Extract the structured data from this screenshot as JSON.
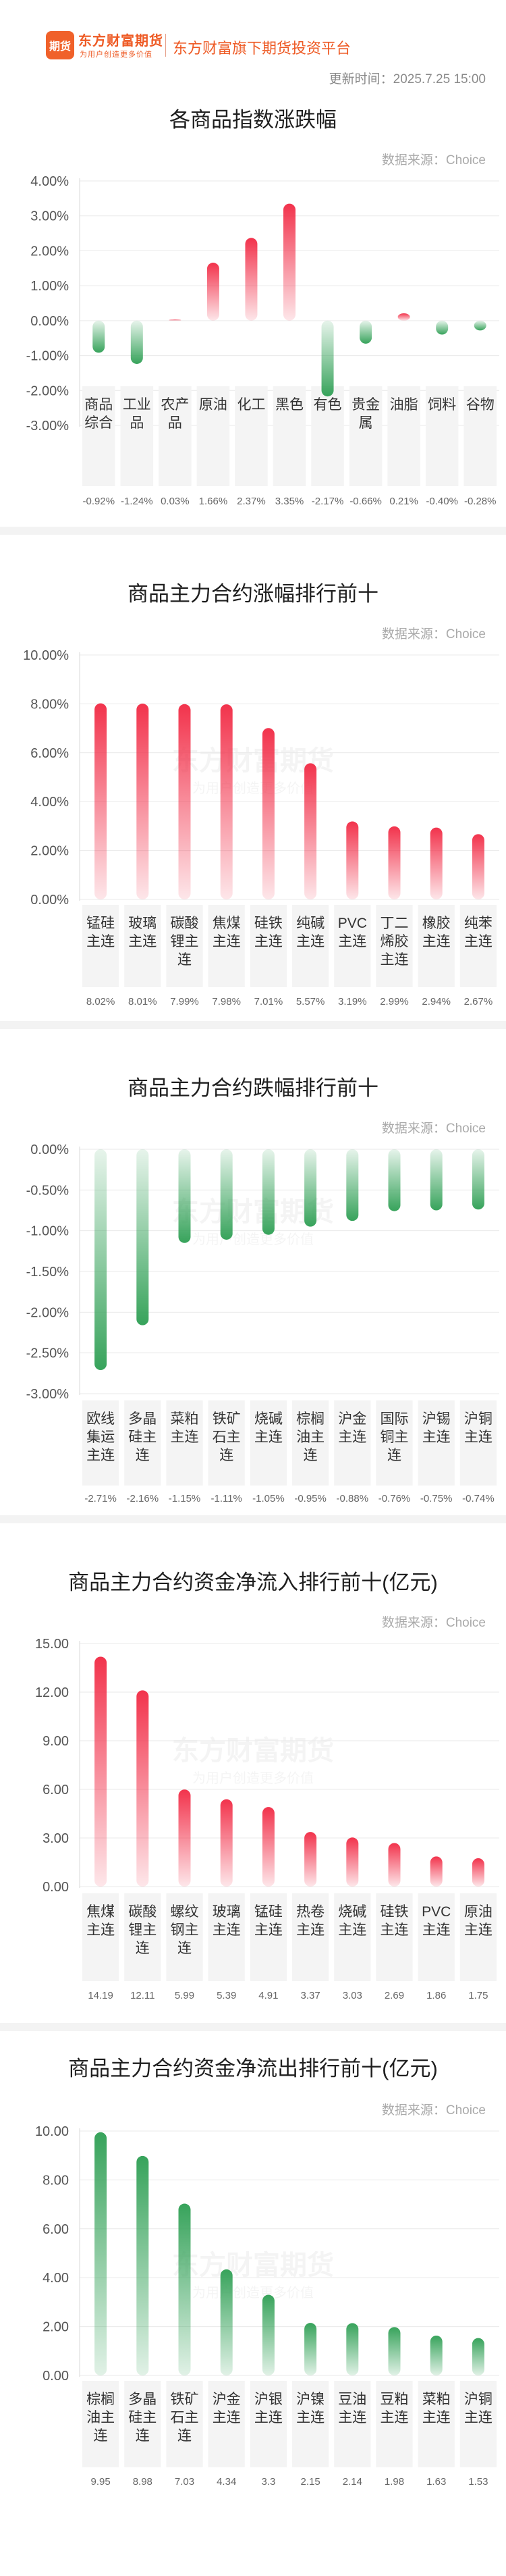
{
  "header": {
    "logo_mark": "期货",
    "logo_name": "东方财富期货",
    "logo_slogan": "为用户创造更多价值",
    "platform": "东方财富旗下期货投资平台",
    "update_time": "更新时间：2025.7.25 15:00"
  },
  "watermark": {
    "main": "东方财富期货",
    "sub": "为用户创造更多价值"
  },
  "colors": {
    "up": "#f2334c",
    "down": "#37a35b",
    "grid": "#e9e9e9",
    "label_bg": "#f4f4f4"
  },
  "chart_data": [
    {
      "type": "bar",
      "title": "各商品指数涨跌幅",
      "source": "数据来源：Choice",
      "categories": [
        "商品\n综合",
        "工业\n品",
        "农产\n品",
        "原油",
        "化工",
        "黑色",
        "有色",
        "贵金\n属",
        "油脂",
        "饲料",
        "谷物"
      ],
      "values": [
        -0.92,
        -1.24,
        0.03,
        1.66,
        2.37,
        3.35,
        -2.17,
        -0.66,
        0.21,
        -0.4,
        -0.28
      ],
      "value_labels": [
        "-0.92%",
        "-1.24%",
        "0.03%",
        "1.66%",
        "2.37%",
        "3.35%",
        "-2.17%",
        "-0.66%",
        "0.21%",
        "-0.40%",
        "-0.28%"
      ],
      "ylim": [
        -3,
        4
      ],
      "ticks": [
        4,
        3,
        2,
        1,
        0,
        -1,
        -2,
        -3
      ],
      "tick_labels": [
        "4.00%",
        "3.00%",
        "2.00%",
        "1.00%",
        "0.00%",
        "-1.00%",
        "-2.00%",
        "-3.00%"
      ]
    },
    {
      "type": "bar",
      "title": "商品主力合约涨幅排行前十",
      "source": "数据来源：Choice",
      "categories": [
        "锰硅\n主连",
        "玻璃\n主连",
        "碳酸\n锂主\n连",
        "焦煤\n主连",
        "硅铁\n主连",
        "纯碱\n主连",
        "PVC\n主连",
        "丁二\n烯胶\n主连",
        "橡胶\n主连",
        "纯苯\n主连"
      ],
      "values": [
        8.02,
        8.01,
        7.99,
        7.98,
        7.01,
        5.57,
        3.19,
        2.99,
        2.94,
        2.67
      ],
      "value_labels": [
        "8.02%",
        "8.01%",
        "7.99%",
        "7.98%",
        "7.01%",
        "5.57%",
        "3.19%",
        "2.99%",
        "2.94%",
        "2.67%"
      ],
      "ylim": [
        0,
        10
      ],
      "ticks": [
        10,
        8,
        6,
        4,
        2,
        0
      ],
      "tick_labels": [
        "10.00%",
        "8.00%",
        "6.00%",
        "4.00%",
        "2.00%",
        "0.00%"
      ]
    },
    {
      "type": "bar",
      "title": "商品主力合约跌幅排行前十",
      "source": "数据来源：Choice",
      "categories": [
        "欧线\n集运\n主连",
        "多晶\n硅主\n连",
        "菜粕\n主连",
        "铁矿\n石主\n连",
        "烧碱\n主连",
        "棕榈\n油主\n连",
        "沪金\n主连",
        "国际\n铜主\n连",
        "沪锡\n主连",
        "沪铜\n主连"
      ],
      "values": [
        -2.71,
        -2.16,
        -1.15,
        -1.11,
        -1.05,
        -0.95,
        -0.88,
        -0.76,
        -0.75,
        -0.74
      ],
      "value_labels": [
        "-2.71%",
        "-2.16%",
        "-1.15%",
        "-1.11%",
        "-1.05%",
        "-0.95%",
        "-0.88%",
        "-0.76%",
        "-0.75%",
        "-0.74%"
      ],
      "ylim": [
        -3,
        0
      ],
      "ticks": [
        0,
        -0.5,
        -1,
        -1.5,
        -2,
        -2.5,
        -3
      ],
      "tick_labels": [
        "0.00%",
        "-0.50%",
        "-1.00%",
        "-1.50%",
        "-2.00%",
        "-2.50%",
        "-3.00%"
      ]
    },
    {
      "type": "bar",
      "title": "商品主力合约资金净流入排行前十(亿元)",
      "source": "数据来源：Choice",
      "categories": [
        "焦煤\n主连",
        "碳酸\n锂主\n连",
        "螺纹\n钢主\n连",
        "玻璃\n主连",
        "锰硅\n主连",
        "热卷\n主连",
        "烧碱\n主连",
        "硅铁\n主连",
        "PVC\n主连",
        "原油\n主连"
      ],
      "values": [
        14.19,
        12.11,
        5.99,
        5.39,
        4.91,
        3.37,
        3.03,
        2.69,
        1.86,
        1.75
      ],
      "value_labels": [
        "14.19",
        "12.11",
        "5.99",
        "5.39",
        "4.91",
        "3.37",
        "3.03",
        "2.69",
        "1.86",
        "1.75"
      ],
      "ylim": [
        0,
        15
      ],
      "ticks": [
        15,
        12,
        9,
        6,
        3,
        0
      ],
      "tick_labels": [
        "15.00",
        "12.00",
        "9.00",
        "6.00",
        "3.00",
        "0.00"
      ]
    },
    {
      "type": "bar",
      "title": "商品主力合约资金净流出排行前十(亿元)",
      "source": "数据来源：Choice",
      "categories": [
        "棕榈\n油主\n连",
        "多晶\n硅主\n连",
        "铁矿\n石主\n连",
        "沪金\n主连",
        "沪银\n主连",
        "沪镍\n主连",
        "豆油\n主连",
        "豆粕\n主连",
        "菜粕\n主连",
        "沪铜\n主连"
      ],
      "values": [
        9.95,
        8.98,
        7.03,
        4.34,
        3.3,
        2.15,
        2.14,
        1.98,
        1.63,
        1.53
      ],
      "value_labels": [
        "9.95",
        "8.98",
        "7.03",
        "4.34",
        "3.3",
        "2.15",
        "2.14",
        "1.98",
        "1.63",
        "1.53"
      ],
      "ylim": [
        0,
        10
      ],
      "ticks": [
        10,
        8,
        6,
        4,
        2,
        0
      ],
      "tick_labels": [
        "10.00",
        "8.00",
        "6.00",
        "4.00",
        "2.00",
        "0.00"
      ]
    }
  ]
}
